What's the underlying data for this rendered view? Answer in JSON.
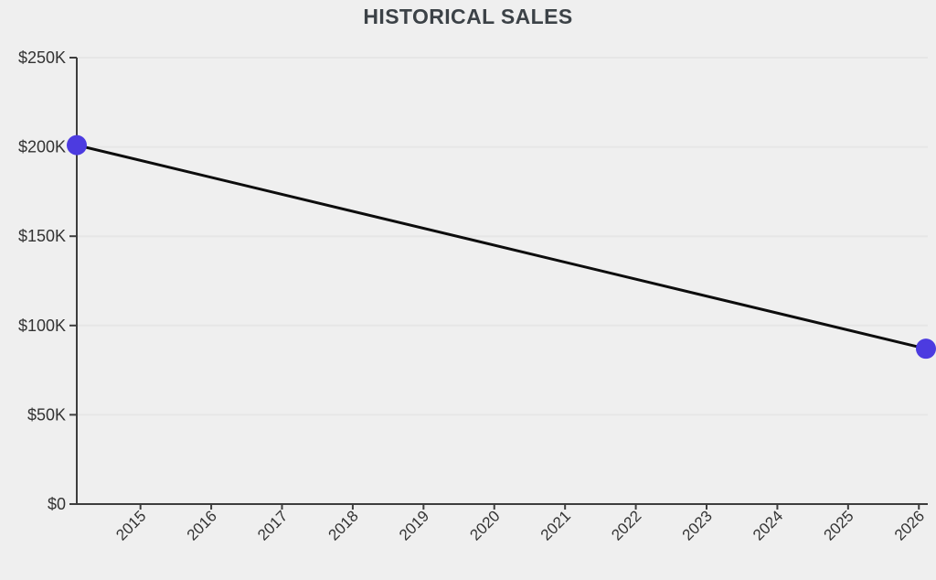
{
  "chart_data": {
    "type": "line",
    "title": "HISTORICAL SALES",
    "xlabel": "",
    "ylabel": "",
    "legend": "none",
    "grid": "horizontal",
    "x_range": [
      2014.1,
      2026.1
    ],
    "y_range": [
      0,
      250000
    ],
    "x_ticks": [
      {
        "value": 2015,
        "label": "2015"
      },
      {
        "value": 2016,
        "label": "2016"
      },
      {
        "value": 2017,
        "label": "2017"
      },
      {
        "value": 2018,
        "label": "2018"
      },
      {
        "value": 2019,
        "label": "2019"
      },
      {
        "value": 2020,
        "label": "2020"
      },
      {
        "value": 2021,
        "label": "2021"
      },
      {
        "value": 2022,
        "label": "2022"
      },
      {
        "value": 2023,
        "label": "2023"
      },
      {
        "value": 2024,
        "label": "2024"
      },
      {
        "value": 2025,
        "label": "2025"
      },
      {
        "value": 2026,
        "label": "2026"
      }
    ],
    "y_ticks": [
      {
        "value": 0,
        "label": "$0"
      },
      {
        "value": 50000,
        "label": "$50K"
      },
      {
        "value": 100000,
        "label": "$100K"
      },
      {
        "value": 150000,
        "label": "$150K"
      },
      {
        "value": 200000,
        "label": "$200K"
      },
      {
        "value": 250000,
        "label": "$250K"
      }
    ],
    "series": [
      {
        "name": "sales",
        "line_color": "#0d0d0d",
        "point_color": "#4c3be0",
        "points": [
          {
            "x": 2014.1,
            "y": 201000
          },
          {
            "x": 2026.1,
            "y": 87000
          }
        ]
      }
    ]
  },
  "colors": {
    "background": "#efefef",
    "axis": "#3d3d3d",
    "grid": "#e6e6e6",
    "tick_text": "#333333",
    "title_text": "#3c4247"
  }
}
